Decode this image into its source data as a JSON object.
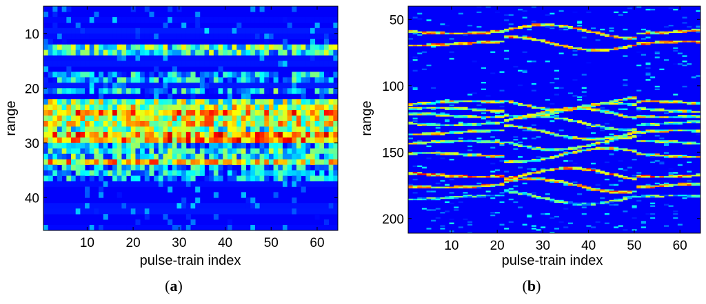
{
  "chart_data": [
    {
      "type": "heatmap",
      "panel_label": "a",
      "xlabel": "pulse-train index",
      "ylabel": "range",
      "xlim": [
        0.5,
        64.5
      ],
      "ylim": [
        46,
        5
      ],
      "xticks": [
        10,
        20,
        30,
        40,
        50,
        60
      ],
      "yticks": [
        10,
        20,
        30,
        40
      ],
      "colormap": "jet",
      "n_columns": 64,
      "range_start": 5,
      "range_end": 46,
      "row_bands": [
        {
          "range": 12.5,
          "intensity": 0.42
        },
        {
          "range": 13.5,
          "intensity": 0.38
        },
        {
          "range": 18.0,
          "intensity": 0.35
        },
        {
          "range": 20.5,
          "intensity": 0.32
        },
        {
          "range": 22.5,
          "intensity": 0.48
        },
        {
          "range": 23.5,
          "intensity": 0.55
        },
        {
          "range": 24.5,
          "intensity": 0.68
        },
        {
          "range": 26.0,
          "intensity": 0.72
        },
        {
          "range": 27.5,
          "intensity": 0.45
        },
        {
          "range": 29.0,
          "intensity": 0.85
        },
        {
          "range": 31.0,
          "intensity": 0.38
        },
        {
          "range": 32.0,
          "intensity": 0.45
        },
        {
          "range": 33.5,
          "intensity": 0.62
        },
        {
          "range": 35.0,
          "intensity": 0.35
        },
        {
          "range": 36.0,
          "intensity": 0.32
        }
      ]
    },
    {
      "type": "heatmap",
      "panel_label": "b",
      "xlabel": "pulse-train index",
      "ylabel": "range",
      "xlim": [
        0.5,
        64.5
      ],
      "ylim": [
        211,
        40
      ],
      "xticks": [
        10,
        20,
        30,
        40,
        50,
        60
      ],
      "yticks": [
        50,
        100,
        150,
        200
      ],
      "colormap": "jet",
      "n_columns": 64,
      "range_start": 40,
      "range_end": 211,
      "scatterers": [
        {
          "range": 59,
          "intensity": 0.62
        },
        {
          "range": 68,
          "intensity": 0.65
        },
        {
          "range": 113,
          "intensity": 0.55
        },
        {
          "range": 118,
          "intensity": 0.5
        },
        {
          "range": 122,
          "intensity": 0.52
        },
        {
          "range": 128,
          "intensity": 0.45
        },
        {
          "range": 135,
          "intensity": 0.55
        },
        {
          "range": 143,
          "intensity": 0.5
        },
        {
          "range": 152,
          "intensity": 0.55
        },
        {
          "range": 167,
          "intensity": 0.68
        },
        {
          "range": 175,
          "intensity": 0.62
        },
        {
          "range": 184,
          "intensity": 0.38
        }
      ]
    }
  ]
}
